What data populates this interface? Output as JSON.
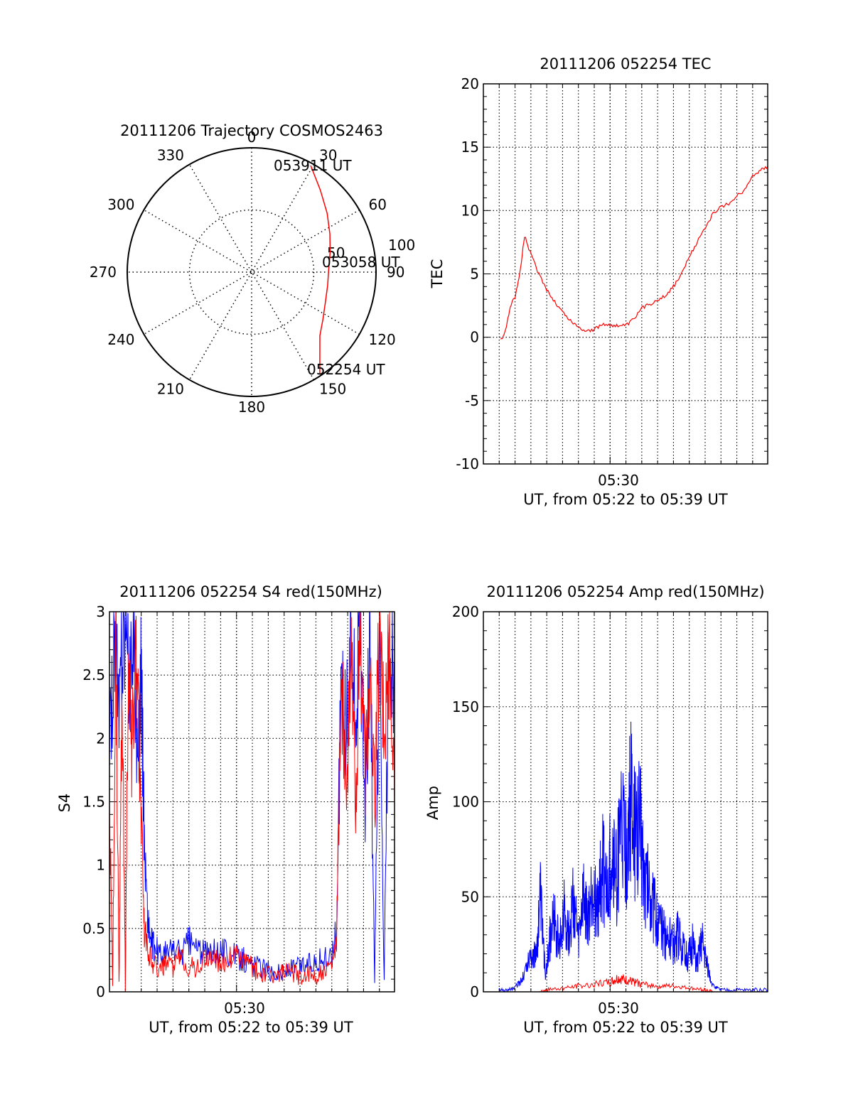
{
  "chart_data": [
    {
      "type": "polar",
      "title": "20111206 Trajectory COSMOS2463",
      "angle_labels": [
        "0",
        "30",
        "60",
        "90",
        "120",
        "150",
        "180",
        "210",
        "240",
        "270",
        "300",
        "330"
      ],
      "radius_labels": [
        "50",
        "100"
      ],
      "trajectory": {
        "color": "#ff0000",
        "azimuth_deg": [
          29,
          40,
          52,
          64,
          76,
          88,
          100,
          112,
          124,
          133,
          146
        ],
        "zenith_deg": [
          98,
          86,
          77,
          70,
          65,
          62,
          62,
          64,
          69,
          75,
          98
        ]
      },
      "annotations": [
        "053911 UT",
        "053058 UT",
        "052254 UT"
      ]
    },
    {
      "type": "line",
      "title": "20111206 052254 TEC",
      "xlabel": "UT, from 05:22 to 05:39 UT",
      "ylabel": "TEC",
      "x_unit": "minutes after 05:22",
      "xlim": [
        0,
        17.95
      ],
      "ylim": [
        -10,
        20
      ],
      "yticks": [
        "-10",
        "-5",
        "0",
        "5",
        "10",
        "15",
        "20"
      ],
      "xtick_labels": [
        "05:30"
      ],
      "grid": true,
      "series": [
        {
          "color": "#ff0000",
          "x": [
            1.1,
            1.4,
            1.7,
            2.0,
            2.3,
            2.6,
            3.0,
            3.5,
            4.0,
            4.5,
            5.0,
            5.5,
            6.0,
            6.5,
            7.0,
            7.5,
            8.0,
            8.5,
            9.0,
            9.5,
            10.0,
            10.5,
            11.0,
            11.5,
            12.0,
            12.5,
            13.0,
            13.5,
            14.0,
            14.5,
            15.0,
            15.5,
            16.0,
            16.5,
            17.0,
            17.5,
            17.95
          ],
          "y": [
            -0.3,
            0.5,
            2.5,
            3.2,
            5.0,
            8.0,
            6.5,
            5.0,
            3.8,
            2.8,
            2.0,
            1.3,
            0.8,
            0.5,
            0.6,
            1.0,
            1.0,
            0.9,
            0.9,
            1.4,
            2.3,
            2.6,
            3.0,
            3.3,
            4.0,
            5.0,
            6.3,
            7.5,
            8.7,
            9.7,
            10.3,
            10.5,
            11.2,
            11.6,
            12.8,
            13.2,
            13.5
          ]
        }
      ]
    },
    {
      "type": "line",
      "title": "20111206 052254 S4 red(150MHz)",
      "xlabel": "UT, from 05:22 to 05:39 UT",
      "ylabel": "S4",
      "x_unit": "minutes after 05:22",
      "xlim": [
        0,
        17.95
      ],
      "ylim": [
        0,
        3
      ],
      "yticks": [
        "0",
        "0.5",
        "1",
        "1.5",
        "2",
        "2.5",
        "3"
      ],
      "xtick_labels": [
        "05:30"
      ],
      "grid": true,
      "series": [
        {
          "color": "#0000ff",
          "x": [
            0.0,
            0.3,
            0.6,
            0.9,
            1.2,
            1.5,
            1.8,
            2.0,
            2.2,
            2.4,
            2.6,
            2.8,
            3.2,
            3.6,
            4.0,
            4.5,
            5.0,
            5.5,
            6.0,
            6.5,
            7.0,
            7.5,
            8.0,
            8.5,
            9.0,
            9.5,
            10.0,
            10.5,
            11.0,
            11.5,
            12.0,
            12.5,
            13.0,
            13.5,
            14.0,
            14.3,
            14.6,
            14.9,
            15.2,
            15.5,
            15.8,
            16.1,
            16.4,
            16.7,
            17.0,
            17.3,
            17.6,
            17.95
          ],
          "y": [
            1.8,
            2.9,
            2.1,
            3.0,
            2.4,
            2.8,
            1.8,
            2.5,
            1.2,
            0.6,
            0.4,
            0.35,
            0.3,
            0.3,
            0.35,
            0.3,
            0.4,
            0.35,
            0.3,
            0.3,
            0.35,
            0.3,
            0.28,
            0.25,
            0.2,
            0.2,
            0.16,
            0.15,
            0.16,
            0.18,
            0.2,
            0.22,
            0.25,
            0.25,
            0.28,
            0.5,
            2.5,
            2.0,
            2.8,
            2.2,
            2.9,
            1.5,
            2.7,
            0.05,
            2.8,
            0.05,
            2.9,
            2.4
          ]
        },
        {
          "color": "#ff0000",
          "x": [
            0.0,
            0.2,
            0.4,
            0.6,
            0.8,
            1.0,
            1.2,
            1.4,
            1.6,
            1.8,
            2.0,
            2.2,
            2.5,
            2.8,
            3.2,
            3.6,
            4.0,
            4.5,
            5.0,
            5.5,
            6.0,
            6.5,
            7.0,
            7.5,
            8.0,
            8.5,
            9.0,
            9.5,
            10.0,
            10.5,
            11.0,
            11.5,
            12.0,
            12.5,
            13.0,
            13.5,
            14.0,
            14.3,
            14.6,
            14.9,
            15.2,
            15.5,
            15.8,
            16.1,
            16.4,
            16.7,
            17.0,
            17.3,
            17.6,
            17.95
          ],
          "y": [
            1.5,
            0.05,
            2.9,
            0.05,
            2.5,
            0.05,
            2.9,
            1.8,
            2.6,
            2.2,
            1.5,
            0.5,
            0.3,
            0.22,
            0.18,
            0.2,
            0.2,
            0.3,
            0.2,
            0.2,
            0.25,
            0.3,
            0.22,
            0.25,
            0.3,
            0.25,
            0.18,
            0.15,
            0.14,
            0.13,
            0.15,
            0.15,
            0.12,
            0.14,
            0.12,
            0.15,
            0.2,
            0.4,
            2.5,
            1.6,
            2.6,
            1.5,
            2.9,
            1.8,
            2.4,
            1.5,
            2.9,
            2.0,
            2.8,
            1.5
          ]
        }
      ]
    },
    {
      "type": "line",
      "title": "20111206 052254 Amp red(150MHz)",
      "xlabel": "UT, from 05:22 to 05:39 UT",
      "ylabel": "Amp",
      "x_unit": "minutes after 05:22",
      "xlim": [
        0,
        17.95
      ],
      "ylim": [
        0,
        200
      ],
      "yticks": [
        "0",
        "50",
        "100",
        "150",
        "200"
      ],
      "xtick_labels": [
        "05:30"
      ],
      "grid": true,
      "series": [
        {
          "color": "#0000ff",
          "x": [
            1.0,
            1.5,
            2.0,
            2.5,
            3.0,
            3.3,
            3.6,
            3.9,
            4.2,
            4.5,
            4.8,
            5.1,
            5.4,
            5.7,
            6.0,
            6.3,
            6.6,
            6.9,
            7.2,
            7.5,
            7.8,
            8.1,
            8.4,
            8.7,
            9.0,
            9.3,
            9.6,
            9.9,
            10.2,
            10.5,
            10.8,
            11.1,
            11.4,
            11.7,
            12.0,
            12.3,
            12.6,
            12.9,
            13.2,
            13.5,
            13.8,
            14.1,
            14.5,
            15.0,
            16.0,
            17.0,
            17.95
          ],
          "y": [
            1,
            1,
            2,
            8,
            20,
            18,
            48,
            10,
            28,
            38,
            22,
            45,
            30,
            50,
            25,
            48,
            35,
            55,
            42,
            68,
            50,
            75,
            60,
            88,
            70,
            102,
            80,
            90,
            60,
            55,
            42,
            35,
            30,
            28,
            25,
            30,
            22,
            18,
            25,
            15,
            28,
            15,
            3,
            1,
            1,
            1,
            1
          ]
        },
        {
          "color": "#ff0000",
          "x": [
            3.5,
            4.0,
            5.0,
            6.0,
            7.0,
            8.0,
            8.5,
            9.0,
            9.5,
            10.0,
            11.0,
            12.0,
            13.0,
            14.0,
            14.5
          ],
          "y": [
            0,
            1,
            2,
            3,
            4,
            5,
            7,
            6,
            5,
            4,
            3,
            3,
            2,
            1,
            0
          ]
        }
      ]
    }
  ]
}
